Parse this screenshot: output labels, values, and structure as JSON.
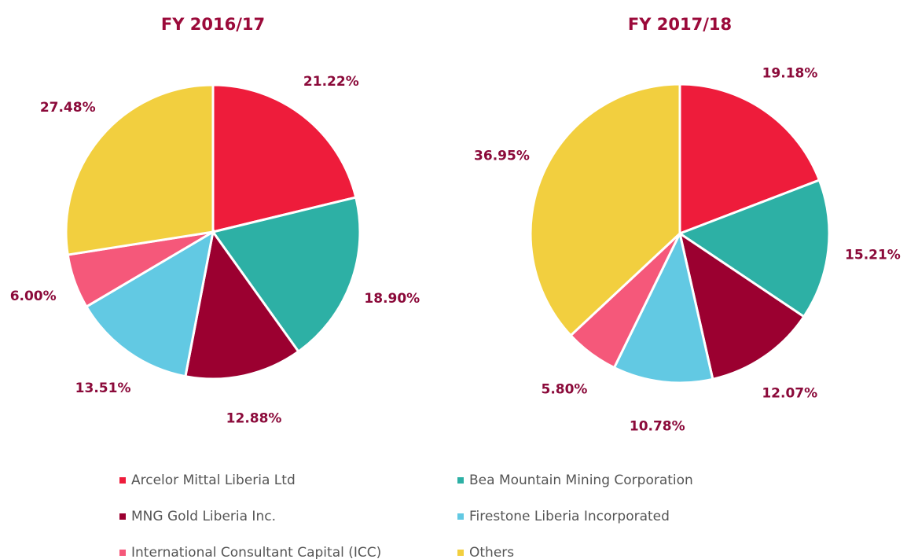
{
  "chart_data": [
    {
      "type": "pie",
      "title": "FY 2016/17",
      "values": [
        21.22,
        18.9,
        12.88,
        13.51,
        6.0,
        27.48
      ],
      "value_labels": [
        "21.22%",
        "18.90%",
        "12.88%",
        "13.51%",
        "6.00%",
        "27.48%"
      ]
    },
    {
      "type": "pie",
      "title": "FY 2017/18",
      "values": [
        19.18,
        15.21,
        12.07,
        10.78,
        5.8,
        36.95
      ],
      "value_labels": [
        "19.18%",
        "15.21%",
        "12.07%",
        "10.78%",
        "5.80%",
        "36.95%"
      ]
    }
  ],
  "legend": {
    "categories": [
      "Arcelor Mittal Liberia Ltd",
      "Bea Mountain Mining Corporation",
      "MNG Gold Liberia Inc.",
      "Firestone Liberia Incorporated",
      "International Consultant Capital (ICC)",
      "Others"
    ],
    "colors": [
      "#ee1c3b",
      "#2db0a5",
      "#9b0030",
      "#62c9e3",
      "#f5587a",
      "#f2cf3f"
    ]
  }
}
